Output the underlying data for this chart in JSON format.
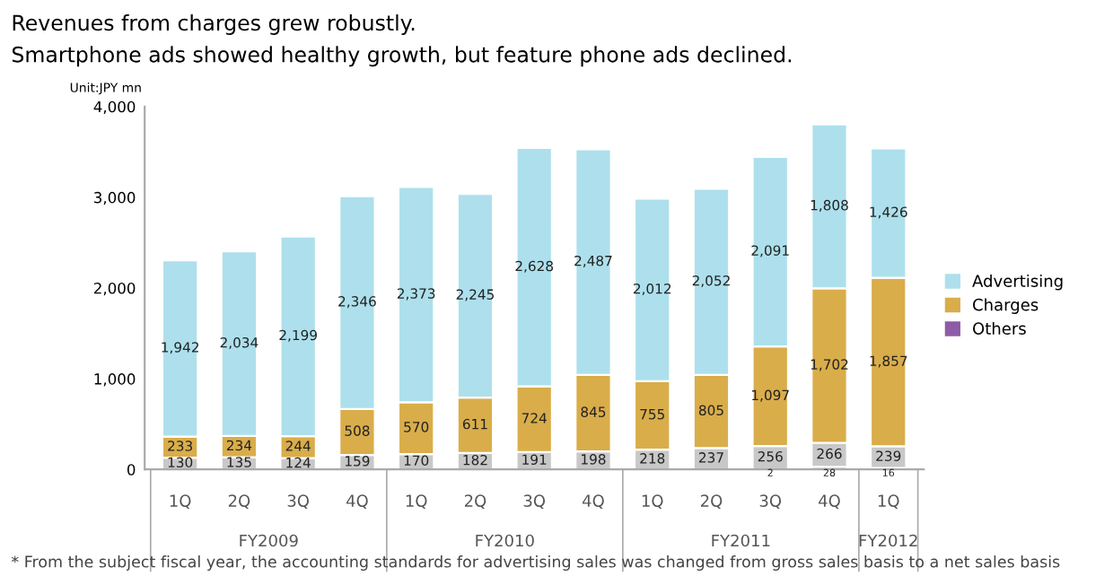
{
  "chart_data": {
    "type": "bar",
    "stacked": true,
    "title": "Revenues from charges grew robustly.",
    "subtitle": "Smartphone ads showed healthy growth, but feature phone ads declined.",
    "ylabel": "Unit:JPY mn",
    "categories": [
      "1Q",
      "2Q",
      "3Q",
      "4Q",
      "1Q",
      "2Q",
      "3Q",
      "4Q",
      "1Q",
      "2Q",
      "3Q",
      "4Q",
      "1Q"
    ],
    "series": [
      {
        "name": "Others",
        "color": "#8e5ba6",
        "values": [
          null,
          null,
          null,
          null,
          null,
          null,
          null,
          null,
          null,
          null,
          2,
          28,
          16
        ],
        "value_labels": [
          null,
          null,
          null,
          null,
          null,
          null,
          null,
          null,
          null,
          null,
          "2",
          "28",
          "16"
        ]
      },
      {
        "color": "#c8c8c8",
        "values": [
          130,
          135,
          124,
          159,
          170,
          182,
          191,
          198,
          218,
          237,
          256,
          266,
          239
        ],
        "value_labels": [
          "130",
          "135",
          "124",
          "159",
          "170",
          "182",
          "191",
          "198",
          "218",
          "237",
          "256",
          "266",
          "239"
        ]
      },
      {
        "name": "Charges",
        "color": "#d9ad4a",
        "values": [
          233,
          234,
          244,
          508,
          570,
          611,
          724,
          845,
          755,
          805,
          1097,
          1702,
          1857
        ],
        "value_labels": [
          "233",
          "234",
          "244",
          "508",
          "570",
          "611",
          "724",
          "845",
          "755",
          "805",
          "1,097",
          "1,702",
          "1,857"
        ]
      },
      {
        "name": "Advertising",
        "color": "#ade0ec",
        "values": [
          1942,
          2034,
          2199,
          2346,
          2373,
          2245,
          2628,
          2487,
          2012,
          2052,
          2091,
          1808,
          1426
        ],
        "value_labels": [
          "1,942",
          "2,034",
          "2,199",
          "2,346",
          "2,373",
          "2,245",
          "2,628",
          "2,487",
          "2,012",
          "2,052",
          "2,091",
          "1,808",
          "1,426"
        ]
      }
    ],
    "ylim": [
      0,
      4000
    ],
    "yticks": [
      0,
      {
        "value": 1000,
        "label": "1,000"
      },
      {
        "value": 2000,
        "label": "2,000"
      },
      {
        "value": 3000,
        "label": "3,000"
      },
      {
        "value": 4000,
        "label": "4,000"
      }
    ],
    "legend": "right",
    "grid": false,
    "annotations": [
      "FY2009",
      "FY2010",
      "FY2011",
      "FY2012",
      "* From the subject fiscal year, the accounting standards for advertising sales was changed from gross sales basis to a net sales basis"
    ]
  }
}
